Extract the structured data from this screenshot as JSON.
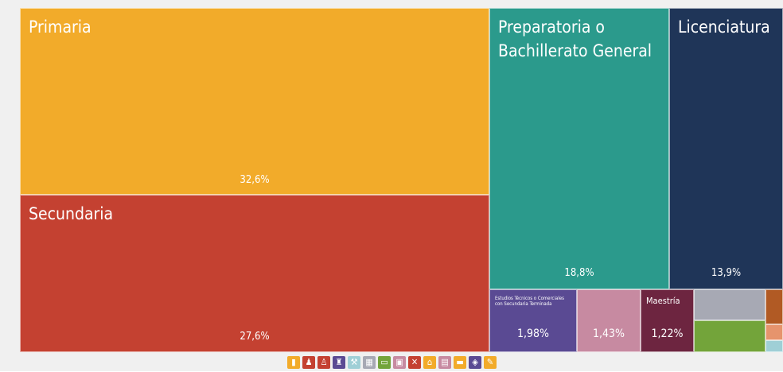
{
  "chart_data": {
    "type": "treemap",
    "tiles": [
      {
        "label": "Primaria",
        "value": "32,6%",
        "color": "#f2ab2a"
      },
      {
        "label": "Secundaria",
        "value": "27,6%",
        "color": "#c44131"
      },
      {
        "label": "Preparatoria o Bachillerato General",
        "value": "18,8%",
        "color": "#2b9a8c"
      },
      {
        "label": "Licenciatura",
        "value": "13,9%",
        "color": "#1f3558"
      },
      {
        "label": "Estudios Técnicos o Comerciales con Secundaria Terminada",
        "value": "1,98%",
        "color": "#5a4a93"
      },
      {
        "label": "",
        "value": "1,43%",
        "color": "#c78aa1"
      },
      {
        "label": "Maestría",
        "value": "1,22%",
        "color": "#6d2540"
      },
      {
        "label": "",
        "value": "",
        "color": "#a7a9b4"
      },
      {
        "label": "",
        "value": "",
        "color": "#73a43a"
      },
      {
        "label": "",
        "value": "",
        "color": "#b15a24"
      },
      {
        "label": "",
        "value": "",
        "color": "#e6946d"
      },
      {
        "label": "",
        "value": "",
        "color": "#9fcfd6"
      }
    ],
    "legend_icons": [
      {
        "icon": "book-icon",
        "color": "#f2ab2a"
      },
      {
        "icon": "backpack-icon",
        "color": "#c44131"
      },
      {
        "icon": "student-icon",
        "color": "#c44131"
      },
      {
        "icon": "graduate-icon",
        "color": "#5a4a93"
      },
      {
        "icon": "tools-icon",
        "color": "#9fcfd6"
      },
      {
        "icon": "puzzle-icon",
        "color": "#a7a9b4"
      },
      {
        "icon": "diploma-icon",
        "color": "#73a43a"
      },
      {
        "icon": "certificate-icon",
        "color": "#c78aa1"
      },
      {
        "icon": "close-icon",
        "color": "#c44131"
      },
      {
        "icon": "building-icon",
        "color": "#f2ab2a"
      },
      {
        "icon": "document-icon",
        "color": "#c78aa1"
      },
      {
        "icon": "folder-icon",
        "color": "#f2ab2a"
      },
      {
        "icon": "badge-icon",
        "color": "#5a4a93"
      },
      {
        "icon": "pencil-icon",
        "color": "#f2ab2a"
      }
    ]
  }
}
